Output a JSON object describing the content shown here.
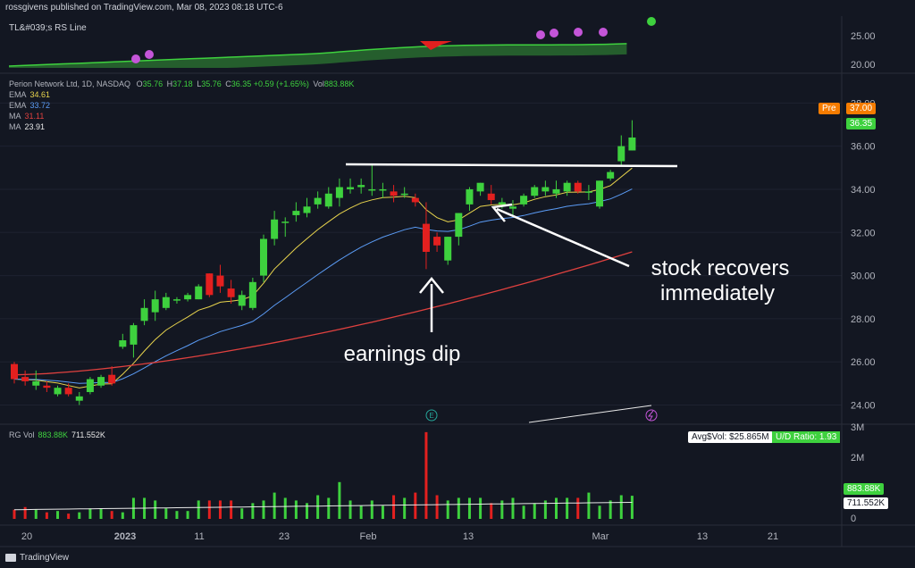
{
  "header": {
    "published": "rossgivens published on TradingView.com, Mar 08, 2023 08:18 UTC-6"
  },
  "rs_panel": {
    "label": "TL&#039;s RS Line",
    "ticks": [
      "25.00",
      "20.00"
    ]
  },
  "ohlc": {
    "title": "Perion Network Ltd, 1D, NASDAQ",
    "o_label": "O",
    "o": "35.76",
    "h_label": "H",
    "h": "37.18",
    "l_label": "L",
    "l": "35.76",
    "c_label": "C",
    "c": "36.35",
    "change": "+0.59 (+1.65%)",
    "vol_label": "Vol",
    "vol": "883.88K"
  },
  "indicators": [
    {
      "name": "EMA",
      "value": "34.61",
      "color": "#e8d44d"
    },
    {
      "name": "EMA",
      "value": "33.72",
      "color": "#5b9cf6"
    },
    {
      "name": "MA",
      "value": "31.11",
      "color": "#e0413f"
    },
    {
      "name": "MA",
      "value": "23.91",
      "color": "#e8e8e8"
    }
  ],
  "price_tags": {
    "pre_label": "Pre",
    "pre_value": "37.00",
    "last_value": "36.35"
  },
  "volume_panel": {
    "label": "RG Vol",
    "vol1": "883.88K",
    "vol2": "711.552K",
    "avg_vol": "Avg$Vol: $25.865M",
    "ud_ratio": "U/D Ratio: 1.93",
    "ticks": [
      "3M",
      "2M",
      "1M",
      "0"
    ],
    "tag1": "883.88K",
    "tag2": "711.552K"
  },
  "x_axis": [
    "20",
    "2023",
    "11",
    "23",
    "Feb",
    "13",
    "Mar",
    "13",
    "21"
  ],
  "annotations": {
    "dip": "earnings dip",
    "recover_line1": "stock recovers",
    "recover_line2": "immediately"
  },
  "footer": {
    "brand": "TradingView"
  },
  "colors": {
    "up": "#3ed13e",
    "down": "#e3201f",
    "ema_fast": "#e8d44d",
    "ema_slow": "#5b9cf6",
    "ma": "#e0413f"
  },
  "chart_data": {
    "type": "candlestick",
    "y_ticks": [
      24,
      26,
      28,
      30,
      32,
      34,
      36,
      38
    ],
    "ylim": [
      23.4,
      38.8
    ],
    "candles": [
      {
        "o": 25.9,
        "h": 26.0,
        "l": 25.0,
        "c": 25.2
      },
      {
        "o": 25.3,
        "h": 25.6,
        "l": 24.9,
        "c": 25.1
      },
      {
        "o": 24.9,
        "h": 25.6,
        "l": 24.7,
        "c": 25.1
      },
      {
        "o": 24.9,
        "h": 25.1,
        "l": 24.6,
        "c": 24.8
      },
      {
        "o": 24.5,
        "h": 24.9,
        "l": 24.4,
        "c": 24.8
      },
      {
        "o": 24.8,
        "h": 25.0,
        "l": 24.4,
        "c": 24.5
      },
      {
        "o": 24.2,
        "h": 24.6,
        "l": 24.0,
        "c": 24.4
      },
      {
        "o": 24.6,
        "h": 25.3,
        "l": 24.5,
        "c": 25.2
      },
      {
        "o": 24.9,
        "h": 25.4,
        "l": 24.8,
        "c": 25.3
      },
      {
        "o": 25.4,
        "h": 25.8,
        "l": 24.9,
        "c": 25.0
      },
      {
        "o": 26.7,
        "h": 27.3,
        "l": 26.6,
        "c": 27.0
      },
      {
        "o": 26.8,
        "h": 27.8,
        "l": 26.2,
        "c": 27.7
      },
      {
        "o": 27.9,
        "h": 28.9,
        "l": 27.7,
        "c": 28.5
      },
      {
        "o": 28.3,
        "h": 29.3,
        "l": 27.9,
        "c": 28.9
      },
      {
        "o": 28.5,
        "h": 29.2,
        "l": 28.4,
        "c": 29.0
      },
      {
        "o": 28.9,
        "h": 29.0,
        "l": 28.7,
        "c": 28.9
      },
      {
        "o": 28.9,
        "h": 29.2,
        "l": 28.8,
        "c": 29.1
      },
      {
        "o": 28.9,
        "h": 29.6,
        "l": 28.9,
        "c": 29.5
      },
      {
        "o": 30.1,
        "h": 30.1,
        "l": 29.0,
        "c": 29.1
      },
      {
        "o": 30.0,
        "h": 30.5,
        "l": 29.2,
        "c": 29.5
      },
      {
        "o": 29.4,
        "h": 29.8,
        "l": 28.7,
        "c": 29.0
      },
      {
        "o": 28.6,
        "h": 29.3,
        "l": 28.4,
        "c": 29.1
      },
      {
        "o": 28.5,
        "h": 29.9,
        "l": 28.4,
        "c": 29.7
      },
      {
        "o": 30.0,
        "h": 31.9,
        "l": 29.7,
        "c": 31.7
      },
      {
        "o": 31.7,
        "h": 33.0,
        "l": 31.4,
        "c": 32.6
      },
      {
        "o": 32.5,
        "h": 32.7,
        "l": 31.8,
        "c": 32.5
      },
      {
        "o": 32.8,
        "h": 33.4,
        "l": 32.5,
        "c": 33.0
      },
      {
        "o": 32.9,
        "h": 33.6,
        "l": 32.7,
        "c": 33.2
      },
      {
        "o": 33.3,
        "h": 33.9,
        "l": 33.1,
        "c": 33.6
      },
      {
        "o": 33.2,
        "h": 34.1,
        "l": 33.1,
        "c": 33.8
      },
      {
        "o": 33.6,
        "h": 34.5,
        "l": 33.2,
        "c": 34.1
      },
      {
        "o": 34.0,
        "h": 34.5,
        "l": 33.8,
        "c": 34.1
      },
      {
        "o": 34.1,
        "h": 34.5,
        "l": 33.8,
        "c": 34.2
      },
      {
        "o": 34.0,
        "h": 35.2,
        "l": 33.7,
        "c": 34.0
      },
      {
        "o": 34.0,
        "h": 34.3,
        "l": 33.6,
        "c": 34.0
      },
      {
        "o": 33.9,
        "h": 34.2,
        "l": 33.4,
        "c": 33.7
      },
      {
        "o": 33.8,
        "h": 34.1,
        "l": 33.6,
        "c": 33.8
      },
      {
        "o": 33.6,
        "h": 33.8,
        "l": 33.2,
        "c": 33.4
      },
      {
        "o": 32.4,
        "h": 33.4,
        "l": 30.3,
        "c": 31.1
      },
      {
        "o": 31.8,
        "h": 32.0,
        "l": 31.1,
        "c": 31.4
      },
      {
        "o": 30.7,
        "h": 31.8,
        "l": 30.5,
        "c": 31.8
      },
      {
        "o": 31.8,
        "h": 32.9,
        "l": 31.4,
        "c": 32.9
      },
      {
        "o": 33.3,
        "h": 34.1,
        "l": 33.0,
        "c": 34.0
      },
      {
        "o": 33.9,
        "h": 34.3,
        "l": 33.7,
        "c": 34.3
      },
      {
        "o": 33.8,
        "h": 34.2,
        "l": 33.3,
        "c": 33.5
      },
      {
        "o": 33.3,
        "h": 33.6,
        "l": 33.1,
        "c": 33.4
      },
      {
        "o": 33.1,
        "h": 33.5,
        "l": 32.8,
        "c": 33.2
      },
      {
        "o": 33.3,
        "h": 33.8,
        "l": 33.2,
        "c": 33.7
      },
      {
        "o": 33.7,
        "h": 34.2,
        "l": 33.6,
        "c": 34.1
      },
      {
        "o": 33.9,
        "h": 34.4,
        "l": 33.7,
        "c": 34.1
      },
      {
        "o": 33.8,
        "h": 34.4,
        "l": 33.6,
        "c": 34.0
      },
      {
        "o": 33.9,
        "h": 34.4,
        "l": 33.7,
        "c": 34.3
      },
      {
        "o": 34.3,
        "h": 34.4,
        "l": 33.8,
        "c": 33.9
      },
      {
        "o": 33.9,
        "h": 34.2,
        "l": 33.5,
        "c": 33.9
      },
      {
        "o": 33.2,
        "h": 34.4,
        "l": 33.1,
        "c": 34.4
      },
      {
        "o": 34.5,
        "h": 34.9,
        "l": 34.4,
        "c": 34.8
      },
      {
        "o": 35.3,
        "h": 36.5,
        "l": 35.1,
        "c": 36.0
      },
      {
        "o": 35.8,
        "h": 37.2,
        "l": 35.8,
        "c": 36.4
      }
    ],
    "volume_ylim": [
      0,
      3.5
    ],
    "volume_m": [
      0.35,
      0.45,
      0.35,
      0.25,
      0.3,
      0.2,
      0.25,
      0.4,
      0.4,
      0.3,
      0.25,
      0.8,
      0.8,
      0.7,
      0.4,
      0.3,
      0.3,
      0.7,
      0.7,
      0.7,
      0.7,
      0.4,
      0.6,
      0.7,
      1.0,
      0.8,
      0.7,
      0.6,
      0.9,
      0.8,
      1.4,
      0.7,
      0.5,
      0.7,
      0.5,
      0.9,
      0.8,
      1.0,
      3.3,
      0.9,
      0.7,
      0.8,
      0.8,
      0.8,
      0.6,
      0.7,
      0.8,
      0.5,
      0.6,
      0.7,
      0.8,
      0.8,
      0.8,
      1.0,
      0.5,
      0.7,
      0.9,
      0.88
    ]
  }
}
